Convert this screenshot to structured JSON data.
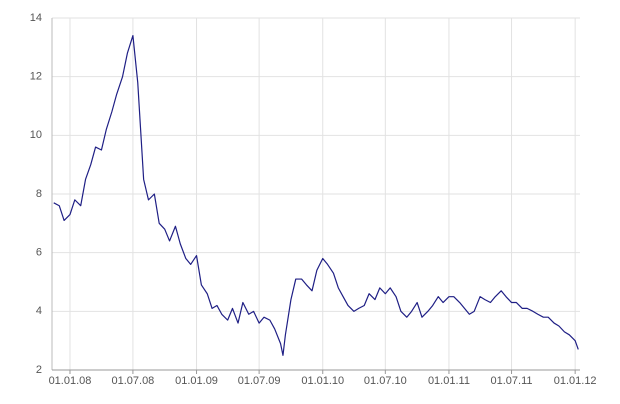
{
  "chart_data": {
    "type": "line",
    "color": "#1f1f85",
    "grid": true,
    "x": [
      "2007-11-15",
      "2007-12-01",
      "2007-12-15",
      "2008-01-01",
      "2008-01-15",
      "2008-02-01",
      "2008-02-15",
      "2008-03-01",
      "2008-03-15",
      "2008-04-01",
      "2008-04-15",
      "2008-05-01",
      "2008-05-15",
      "2008-06-01",
      "2008-06-15",
      "2008-07-01",
      "2008-07-15",
      "2008-08-01",
      "2008-08-15",
      "2008-09-01",
      "2008-09-15",
      "2008-10-01",
      "2008-10-15",
      "2008-11-01",
      "2008-11-15",
      "2008-12-01",
      "2008-12-15",
      "2009-01-01",
      "2009-01-15",
      "2009-02-01",
      "2009-02-15",
      "2009-03-01",
      "2009-03-15",
      "2009-04-01",
      "2009-04-15",
      "2009-05-01",
      "2009-05-15",
      "2009-06-01",
      "2009-06-15",
      "2009-07-01",
      "2009-07-15",
      "2009-08-01",
      "2009-08-15",
      "2009-09-01",
      "2009-09-08",
      "2009-09-15",
      "2009-10-01",
      "2009-10-15",
      "2009-11-01",
      "2009-11-15",
      "2009-12-01",
      "2009-12-15",
      "2010-01-01",
      "2010-01-15",
      "2010-02-01",
      "2010-02-15",
      "2010-03-01",
      "2010-03-15",
      "2010-04-01",
      "2010-04-15",
      "2010-05-01",
      "2010-05-15",
      "2010-06-01",
      "2010-06-15",
      "2010-07-01",
      "2010-07-15",
      "2010-08-01",
      "2010-08-15",
      "2010-09-01",
      "2010-09-15",
      "2010-10-01",
      "2010-10-15",
      "2010-11-01",
      "2010-11-15",
      "2010-12-01",
      "2010-12-15",
      "2011-01-01",
      "2011-01-15",
      "2011-02-01",
      "2011-02-15",
      "2011-03-01",
      "2011-03-15",
      "2011-04-01",
      "2011-04-15",
      "2011-05-01",
      "2011-05-15",
      "2011-06-01",
      "2011-06-15",
      "2011-07-01",
      "2011-07-15",
      "2011-08-01",
      "2011-08-15",
      "2011-09-01",
      "2011-09-15",
      "2011-10-01",
      "2011-10-15",
      "2011-11-01",
      "2011-11-15",
      "2011-12-01",
      "2011-12-15",
      "2012-01-01",
      "2012-01-10"
    ],
    "values": [
      7.7,
      7.6,
      7.1,
      7.3,
      7.8,
      7.6,
      8.5,
      9.0,
      9.6,
      9.5,
      10.2,
      10.8,
      11.4,
      12.0,
      12.8,
      13.4,
      11.8,
      8.5,
      7.8,
      8.0,
      7.0,
      6.8,
      6.4,
      6.9,
      6.3,
      5.8,
      5.6,
      5.9,
      4.9,
      4.6,
      4.1,
      4.2,
      3.9,
      3.7,
      4.1,
      3.6,
      4.3,
      3.9,
      4.0,
      3.6,
      3.8,
      3.7,
      3.4,
      2.9,
      2.5,
      3.2,
      4.4,
      5.1,
      5.1,
      4.9,
      4.7,
      5.4,
      5.8,
      5.6,
      5.3,
      4.8,
      4.5,
      4.2,
      4.0,
      4.1,
      4.2,
      4.6,
      4.4,
      4.8,
      4.6,
      4.8,
      4.5,
      4.0,
      3.8,
      4.0,
      4.3,
      3.8,
      4.0,
      4.2,
      4.5,
      4.3,
      4.5,
      4.5,
      4.3,
      4.1,
      3.9,
      4.0,
      4.5,
      4.4,
      4.3,
      4.5,
      4.7,
      4.5,
      4.3,
      4.3,
      4.1,
      4.1,
      4.0,
      3.9,
      3.8,
      3.8,
      3.6,
      3.5,
      3.3,
      3.2,
      3.0,
      2.7
    ],
    "xlim": [
      "2007-11-10",
      "2012-01-15"
    ],
    "xticks": [
      {
        "value": "2008-01-01",
        "label": "01.01.08"
      },
      {
        "value": "2008-07-01",
        "label": "01.07.08"
      },
      {
        "value": "2009-01-01",
        "label": "01.01.09"
      },
      {
        "value": "2009-07-01",
        "label": "01.07.09"
      },
      {
        "value": "2010-01-01",
        "label": "01.01.10"
      },
      {
        "value": "2010-07-01",
        "label": "01.07.10"
      },
      {
        "value": "2011-01-01",
        "label": "01.01.11"
      },
      {
        "value": "2011-07-01",
        "label": "01.07.11"
      },
      {
        "value": "2012-01-01",
        "label": "01.01.12"
      }
    ],
    "ylim": [
      2,
      14
    ],
    "yticks": [
      2,
      4,
      6,
      8,
      10,
      12,
      14
    ]
  }
}
